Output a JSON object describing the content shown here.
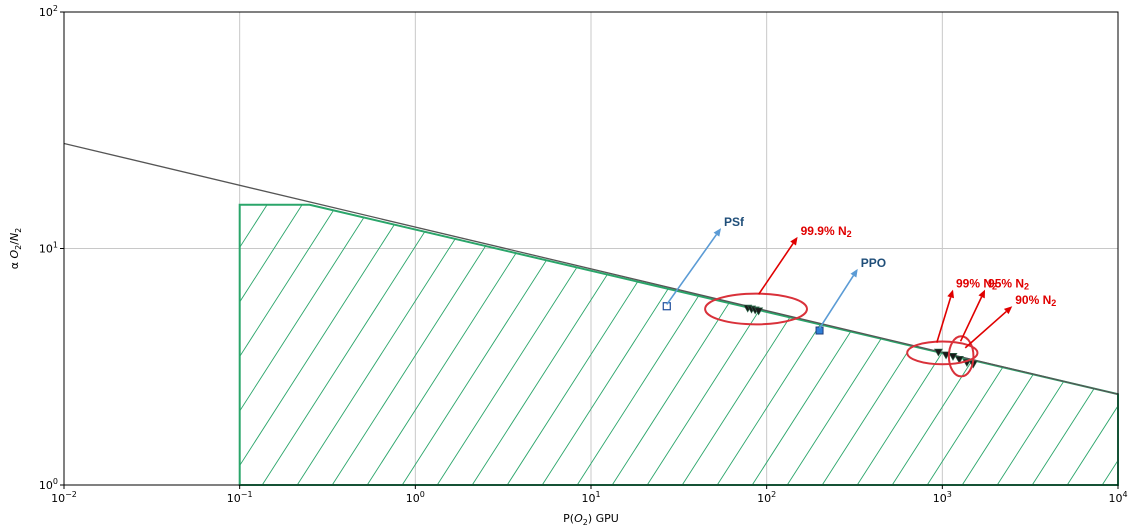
{
  "chart_data": {
    "type": "scatter",
    "xscale": "log",
    "yscale": "log",
    "xlim": [
      0.01,
      10000
    ],
    "ylim": [
      1,
      100
    ],
    "grid": true,
    "xlabel_parts": [
      "P(",
      "O",
      "2",
      ") GPU"
    ],
    "ylabel_parts": [
      "α ",
      "O",
      "2",
      "/",
      "N",
      "2"
    ],
    "xticks": [
      {
        "base": "10",
        "exp": "−2",
        "value": 0.01
      },
      {
        "base": "10",
        "exp": "−1",
        "value": 0.1
      },
      {
        "base": "10",
        "exp": "0",
        "value": 1
      },
      {
        "base": "10",
        "exp": "1",
        "value": 10
      },
      {
        "base": "10",
        "exp": "2",
        "value": 100
      },
      {
        "base": "10",
        "exp": "3",
        "value": 1000
      },
      {
        "base": "10",
        "exp": "4",
        "value": 10000
      }
    ],
    "yticks": [
      {
        "base": "10",
        "exp": "0",
        "value": 1
      },
      {
        "base": "10",
        "exp": "1",
        "value": 10
      },
      {
        "base": "10",
        "exp": "2",
        "value": 100
      }
    ],
    "upper_bound_line": {
      "color": "#555555",
      "points": [
        [
          0.01,
          27.8
        ],
        [
          10000,
          2.42
        ]
      ]
    },
    "feasible_region": {
      "color": "#2aa56a",
      "hatch": "diagonal",
      "vertices": [
        [
          0.1,
          1
        ],
        [
          0.1,
          15.3
        ],
        [
          0.25,
          15.3
        ],
        [
          10000,
          2.42
        ],
        [
          10000,
          1
        ]
      ]
    },
    "series": [
      {
        "marker": "square-open",
        "color": "#1f4e9c",
        "points": [
          [
            27,
            5.7
          ]
        ]
      },
      {
        "marker": "square-filled",
        "color": "#2f7fd8",
        "points": [
          [
            200,
            4.5
          ]
        ]
      },
      {
        "marker": "triangles",
        "color": "#1a1a1a",
        "points": [
          [
            78,
            5.6
          ],
          [
            82,
            5.55
          ],
          [
            86,
            5.5
          ],
          [
            90,
            5.45
          ]
        ]
      },
      {
        "marker": "triangles",
        "color": "#1a1a1a",
        "points": [
          [
            950,
            3.65
          ],
          [
            1050,
            3.55
          ],
          [
            1150,
            3.5
          ],
          [
            1250,
            3.4
          ],
          [
            1380,
            3.3
          ],
          [
            1500,
            3.25
          ]
        ]
      }
    ],
    "annotations": [
      {
        "label": "PSf",
        "sub": "",
        "color": "#1f4e79",
        "arrow_color": "#5b9bd5",
        "from": [
          27,
          5.8
        ],
        "to": [
          55,
          12.2
        ]
      },
      {
        "label": "PPO",
        "sub": "",
        "color": "#1f4e79",
        "arrow_color": "#5b9bd5",
        "from": [
          200,
          4.6
        ],
        "to": [
          330,
          8.2
        ]
      },
      {
        "label": "99.9% N",
        "sub": "2",
        "color": "#e00000",
        "arrow_color": "#e00000",
        "from": [
          90,
          6.4
        ],
        "to": [
          150,
          11.2
        ]
      },
      {
        "label": "99% N",
        "sub": "2",
        "color": "#e00000",
        "arrow_color": "#e00000",
        "from": [
          930,
          4.0
        ],
        "to": [
          1150,
          6.7
        ]
      },
      {
        "label": "95% N",
        "sub": "2",
        "color": "#e00000",
        "arrow_color": "#e00000",
        "from": [
          1270,
          4.05
        ],
        "to": [
          1750,
          6.7
        ]
      },
      {
        "label": "90% N",
        "sub": "2",
        "color": "#e00000",
        "arrow_color": "#e00000",
        "from": [
          1350,
          3.8
        ],
        "to": [
          2500,
          5.7
        ]
      }
    ],
    "highlight_ellipses": [
      {
        "color": "#d9313a",
        "center": [
          87,
          5.55
        ],
        "rx_decades": 0.29,
        "ry_decades": 0.065
      },
      {
        "color": "#d9313a",
        "center": [
          1000,
          3.62
        ],
        "rx_decades": 0.2,
        "ry_decades": 0.048
      },
      {
        "color": "#d9313a",
        "center": [
          1280,
          3.5
        ],
        "rx_decades": 0.07,
        "ry_decades": 0.085
      }
    ]
  }
}
